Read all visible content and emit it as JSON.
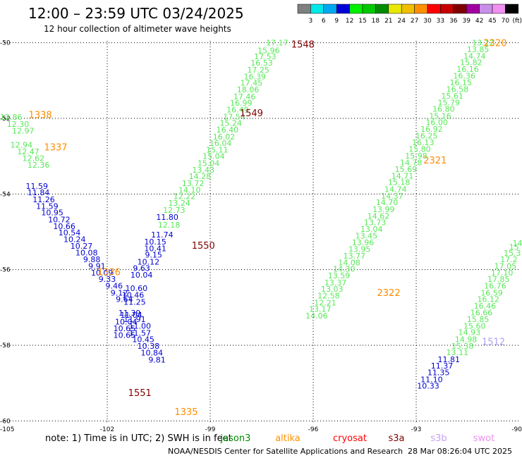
{
  "header": {
    "title": "12:00 – 23:59 UTC 03/24/2025",
    "subtitle": "12 hour collection of altimeter wave heights"
  },
  "legend": {
    "unit": "(ft)",
    "bins": [
      {
        "label": "3",
        "color": "#808080"
      },
      {
        "label": "6",
        "color": "#00e8e8"
      },
      {
        "label": "9",
        "color": "#00a8f0"
      },
      {
        "label": "12",
        "color": "#0000d8"
      },
      {
        "label": "15",
        "color": "#00f000"
      },
      {
        "label": "18",
        "color": "#00c800"
      },
      {
        "label": "21",
        "color": "#008c00"
      },
      {
        "label": "24",
        "color": "#e8e800"
      },
      {
        "label": "27",
        "color": "#f0c000"
      },
      {
        "label": "30",
        "color": "#ff9000"
      },
      {
        "label": "33",
        "color": "#ff0000"
      },
      {
        "label": "36",
        "color": "#c80000"
      },
      {
        "label": "39",
        "color": "#800000"
      },
      {
        "label": "42",
        "color": "#a000a0"
      },
      {
        "label": "45",
        "color": "#c890e8"
      },
      {
        "label": "70",
        "color": "#f090f0"
      },
      {
        "label": "",
        "color": "#000000"
      }
    ]
  },
  "footer": {
    "note": "note: 1) Time is in UTC; 2) SWH is in feet",
    "credit": "NOAA/NESDIS Center for Satellite Applications and Research",
    "timestamp": "28 Mar 08:26:04 UTC 2025",
    "satellites": [
      {
        "name": "jason3",
        "color": "#008c00"
      },
      {
        "name": "altika",
        "color": "#ff9000"
      },
      {
        "name": "cryosat",
        "color": "#ff0000"
      },
      {
        "name": "s3a",
        "color": "#800000"
      },
      {
        "name": "s3b",
        "color": "#c8a0f0"
      },
      {
        "name": "swot",
        "color": "#f090f0"
      }
    ]
  },
  "colors": {
    "light_green": "#58e858",
    "blue": "#0000d0",
    "orange": "#ff8c00",
    "dark_red": "#800000",
    "lavender": "#b0a0f0",
    "teal": "#00a0a0"
  },
  "chart_data": {
    "type": "scatter",
    "title": "12:00 – 23:59 UTC 03/24/2025",
    "subtitle": "12 hour collection of altimeter wave heights",
    "xlabel": "",
    "ylabel": "",
    "xlim": [
      -105,
      -90
    ],
    "ylim": [
      -60.05,
      -49.95
    ],
    "grid": true,
    "x_ticks": [
      -105,
      -102,
      -99,
      -96,
      -93,
      -90
    ],
    "y_ticks": [
      -50,
      -52,
      -54,
      -56,
      -58,
      -60
    ],
    "x_tick_labels": [
      "-105",
      "-102",
      "-99",
      "-96",
      "-93",
      "-90"
    ],
    "y_tick_labels": [
      "-50",
      "-52",
      "-54",
      "-56",
      "-58",
      "-60"
    ],
    "pass_labels": [
      {
        "text": "1548",
        "x": -96.3,
        "y": -50.03,
        "color": "#800000"
      },
      {
        "text": "1549",
        "x": -97.8,
        "y": -51.85,
        "color": "#800000"
      },
      {
        "text": "1550",
        "x": -99.2,
        "y": -55.35,
        "color": "#800000"
      },
      {
        "text": "1551",
        "x": -101.05,
        "y": -59.25,
        "color": "#800000"
      },
      {
        "text": "1338",
        "x": -103.95,
        "y": -51.9,
        "color": "#ff8c00"
      },
      {
        "text": "1337",
        "x": -103.5,
        "y": -52.75,
        "color": "#ff8c00"
      },
      {
        "text": "1336",
        "x": -101.95,
        "y": -56.05,
        "color": "#ff8c00"
      },
      {
        "text": "1335",
        "x": -99.7,
        "y": -59.75,
        "color": "#ff8c00"
      },
      {
        "text": "2320",
        "x": -90.7,
        "y": -50.0,
        "color": "#ff8c00"
      },
      {
        "text": "2321",
        "x": -92.45,
        "y": -53.1,
        "color": "#ff8c00"
      },
      {
        "text": "2322",
        "x": -93.8,
        "y": -56.6,
        "color": "#ff8c00"
      },
      {
        "text": "1512",
        "x": -90.75,
        "y": -57.9,
        "color": "#b0a0f0"
      }
    ],
    "series": [
      {
        "name": "1548",
        "color": "#58e858",
        "points": [
          [
            -97.05,
            -50.0,
            "17.17"
          ],
          [
            -97.3,
            -50.2,
            "15.96"
          ],
          [
            -97.4,
            -50.36,
            "17.53"
          ],
          [
            -97.5,
            -50.53,
            "16.53"
          ],
          [
            -97.6,
            -50.71,
            "17.25"
          ],
          [
            -97.7,
            -50.89,
            "16.39"
          ],
          [
            -97.8,
            -51.06,
            "17.45"
          ],
          [
            -97.9,
            -51.24,
            "18.06"
          ],
          [
            -98.0,
            -51.42,
            "17.46"
          ],
          [
            -98.1,
            -51.59,
            "16.99"
          ],
          [
            -98.2,
            -51.77,
            "16.49"
          ],
          [
            -98.3,
            -51.95,
            "17.54"
          ],
          [
            -98.4,
            -52.12,
            "15.24"
          ],
          [
            -98.5,
            -52.3,
            "16.40"
          ],
          [
            -98.6,
            -52.48,
            "16.02"
          ],
          [
            -98.7,
            -52.65,
            "16.04"
          ],
          [
            -98.8,
            -52.83,
            "15.11"
          ],
          [
            -98.9,
            -53.0,
            "15.04"
          ],
          [
            -99.05,
            -53.18,
            "15.04"
          ],
          [
            -99.2,
            -53.36,
            "13.43"
          ],
          [
            -99.3,
            -53.53,
            "14.28"
          ],
          [
            -99.5,
            -53.71,
            "13.72"
          ],
          [
            -99.6,
            -53.89,
            "14.10"
          ],
          [
            -99.75,
            -54.06,
            "12.22"
          ],
          [
            -99.9,
            -54.24,
            "13.24"
          ],
          [
            -100.05,
            -54.42,
            "12.73"
          ],
          [
            -100.2,
            -54.81,
            "12.18"
          ]
        ]
      },
      {
        "name": "1336",
        "color": "#0000d0",
        "points": [
          [
            -100.25,
            -54.61,
            "11.80"
          ],
          [
            -100.4,
            -55.07,
            "11.74"
          ],
          [
            -100.6,
            -55.26,
            "10.15"
          ],
          [
            -100.6,
            -55.44,
            "10.41"
          ],
          [
            -100.65,
            -55.61,
            "9.15"
          ],
          [
            -100.8,
            -55.79,
            "10.12"
          ],
          [
            -101.0,
            -55.96,
            "9.63"
          ],
          [
            -101.0,
            -56.14,
            "10.04"
          ],
          [
            -101.15,
            -56.49,
            "10.60"
          ],
          [
            -101.25,
            -56.67,
            "10.46"
          ],
          [
            -101.2,
            -56.85,
            "11.25"
          ],
          [
            -101.3,
            -57.2,
            "11.04"
          ],
          [
            -101.45,
            -57.38,
            "10.04"
          ],
          [
            -101.5,
            -57.55,
            "10.65"
          ],
          [
            -101.5,
            -57.73,
            "10.65"
          ]
        ]
      },
      {
        "name": "1337",
        "color": "#0000d0",
        "points": [
          [
            -104.05,
            -53.79,
            "11.59"
          ],
          [
            -104.0,
            -53.96,
            "11.84"
          ],
          [
            -103.85,
            -54.14,
            "11.26"
          ],
          [
            -103.75,
            -54.32,
            "11.59"
          ],
          [
            -103.6,
            -54.49,
            "10.95"
          ],
          [
            -103.4,
            -54.67,
            "10.72"
          ],
          [
            -103.25,
            -54.85,
            "10.66"
          ],
          [
            -103.1,
            -55.02,
            "10.54"
          ],
          [
            -102.95,
            -55.2,
            "10.24"
          ],
          [
            -102.75,
            -55.37,
            "10.27"
          ],
          [
            -102.6,
            -55.55,
            "10.08"
          ],
          [
            -102.45,
            -55.73,
            "9.88"
          ],
          [
            -102.3,
            -55.9,
            "9.91"
          ],
          [
            -102.15,
            -56.08,
            "10.09"
          ],
          [
            -102.0,
            -56.25,
            "9.33"
          ],
          [
            -101.8,
            -56.43,
            "9.46"
          ],
          [
            -101.65,
            -56.61,
            "9.12"
          ],
          [
            -101.5,
            -56.78,
            "9.64"
          ],
          [
            -101.35,
            -57.14,
            "11.39"
          ],
          [
            -101.2,
            -57.31,
            "11.91"
          ],
          [
            -101.05,
            -57.49,
            "11.00"
          ],
          [
            -101.05,
            -57.67,
            "11.57"
          ],
          [
            -100.95,
            -57.84,
            "10.45"
          ],
          [
            -100.8,
            -58.02,
            "10.38"
          ],
          [
            -100.7,
            -58.2,
            "10.84"
          ],
          [
            -100.55,
            -58.38,
            "9.81"
          ]
        ]
      },
      {
        "name": "1338",
        "color": "#58e858",
        "points": [
          [
            -104.8,
            -51.96,
            "12.86"
          ],
          [
            -104.6,
            -52.15,
            "12.30"
          ],
          [
            -104.45,
            -52.33,
            "12.97"
          ],
          [
            -104.5,
            -52.7,
            "12.94"
          ],
          [
            -104.3,
            -52.88,
            "12.47"
          ],
          [
            -104.15,
            -53.05,
            "12.62"
          ],
          [
            -104.0,
            -53.23,
            "12.36"
          ]
        ]
      },
      {
        "name": "2320",
        "color": "#58e858",
        "points": [
          [
            -91.05,
            -50.0,
            "13.12"
          ],
          [
            -91.2,
            -50.17,
            "13.85"
          ],
          [
            -91.3,
            -50.35,
            "14.74"
          ],
          [
            -91.4,
            -50.52,
            "15.82"
          ],
          [
            -91.5,
            -50.7,
            "16.16"
          ],
          [
            -91.6,
            -50.87,
            "16.36"
          ],
          [
            -91.7,
            -51.05,
            "16.15"
          ],
          [
            -91.8,
            -51.23,
            "16.58"
          ],
          [
            -91.95,
            -51.4,
            "15.61"
          ],
          [
            -92.05,
            -51.58,
            "15.79"
          ],
          [
            -92.2,
            -51.75,
            "16.80"
          ],
          [
            -92.3,
            -51.93,
            "15.16"
          ],
          [
            -92.4,
            -52.1,
            "16.00"
          ],
          [
            -92.55,
            -52.28,
            "16.92"
          ],
          [
            -92.7,
            -52.46,
            "16.25"
          ],
          [
            -92.8,
            -52.63,
            "16.13"
          ],
          [
            -92.9,
            -52.81,
            "15.80"
          ],
          [
            -93.0,
            -52.99,
            "15.98"
          ],
          [
            -93.15,
            -53.16,
            "14.78"
          ],
          [
            -93.3,
            -53.34,
            "15.69"
          ],
          [
            -93.4,
            -53.52,
            "14.71"
          ],
          [
            -93.5,
            -53.69,
            "15.18"
          ],
          [
            -93.6,
            -53.87,
            "14.74"
          ],
          [
            -93.7,
            -54.05,
            "14.37"
          ],
          [
            -93.85,
            -54.22,
            "14.70"
          ],
          [
            -93.95,
            -54.4,
            "13.99"
          ],
          [
            -94.1,
            -54.58,
            "14.62"
          ],
          [
            -94.2,
            -54.75,
            "13.73"
          ],
          [
            -94.3,
            -54.93,
            "13.04"
          ],
          [
            -94.45,
            -55.1,
            "13.45"
          ],
          [
            -94.55,
            -55.28,
            "13.96"
          ],
          [
            -94.65,
            -55.46,
            "13.95"
          ],
          [
            -94.8,
            -55.63,
            "13.77"
          ],
          [
            -94.95,
            -55.81,
            "14.08"
          ],
          [
            -95.1,
            -55.98,
            "14.30"
          ],
          [
            -95.25,
            -56.16,
            "13.59"
          ],
          [
            -95.35,
            -56.34,
            "13.37"
          ],
          [
            -95.45,
            -56.51,
            "13.03"
          ],
          [
            -95.55,
            -56.69,
            "12.58"
          ],
          [
            -95.65,
            -56.87,
            "12.21"
          ],
          [
            -95.8,
            -57.04,
            "13.17"
          ],
          [
            -95.9,
            -57.22,
            "14.06"
          ]
        ]
      },
      {
        "name": "1512",
        "color": "#58e858",
        "points": [
          [
            -90.05,
            -55.3,
            "14"
          ],
          [
            -90.15,
            -55.4,
            "15"
          ],
          [
            -90.2,
            -55.56,
            "15.3"
          ],
          [
            -90.3,
            -55.73,
            "17.2"
          ],
          [
            -90.4,
            -55.9,
            "17.05"
          ],
          [
            -90.5,
            -56.08,
            "17.10"
          ],
          [
            -90.6,
            -56.25,
            "17.85"
          ],
          [
            -90.7,
            -56.43,
            "16.76"
          ],
          [
            -90.8,
            -56.61,
            "16.59"
          ],
          [
            -90.9,
            -56.78,
            "16.12"
          ],
          [
            -91.0,
            -56.96,
            "16.46"
          ],
          [
            -91.1,
            -57.13,
            "16.66"
          ],
          [
            -91.2,
            -57.31,
            "15.85"
          ],
          [
            -91.3,
            -57.49,
            "15.60"
          ],
          [
            -91.45,
            -57.66,
            "14.93"
          ],
          [
            -91.55,
            -57.84,
            "14.98"
          ],
          [
            -91.65,
            -58.02,
            "15.38"
          ],
          [
            -91.8,
            -58.19,
            "13.11"
          ]
        ]
      },
      {
        "name": "2322",
        "color": "#0000d0",
        "points": [
          [
            -92.05,
            -58.37,
            "11.81"
          ],
          [
            -92.25,
            -58.54,
            "11.37"
          ],
          [
            -92.35,
            -58.72,
            "11.35"
          ],
          [
            -92.55,
            -58.9,
            "11.10"
          ],
          [
            -92.65,
            -59.07,
            "10.33"
          ]
        ]
      }
    ]
  }
}
